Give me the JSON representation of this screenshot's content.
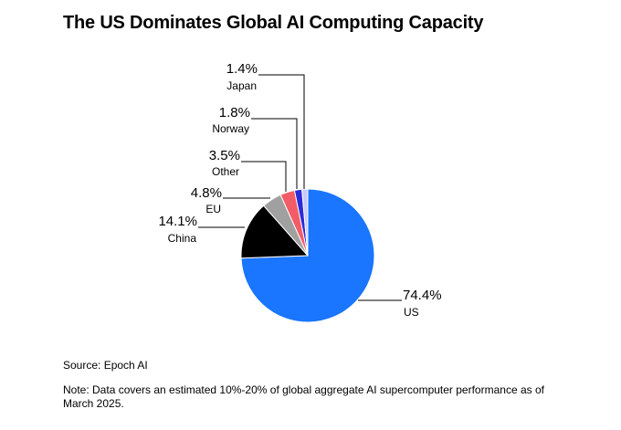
{
  "title": "The US Dominates Global AI Computing Capacity",
  "source": "Source: Epoch AI",
  "note": "Note: Data covers an estimated 10%-20% of global aggregate AI supercomputer performance as of March 2025.",
  "chart_data": {
    "type": "pie",
    "title": "The US Dominates Global AI Computing Capacity",
    "slices": [
      {
        "label": "US",
        "value": 74.4,
        "display": "74.4%",
        "color": "#1a75ff"
      },
      {
        "label": "China",
        "value": 14.1,
        "display": "14.1%",
        "color": "#000000"
      },
      {
        "label": "EU",
        "value": 4.8,
        "display": "4.8%",
        "color": "#a0a0a0"
      },
      {
        "label": "Other",
        "value": 3.5,
        "display": "3.5%",
        "color": "#f25c66"
      },
      {
        "label": "Norway",
        "value": 1.8,
        "display": "1.8%",
        "color": "#2b2bd8"
      },
      {
        "label": "Japan",
        "value": 1.4,
        "display": "1.4%",
        "color": "#c9c9ff"
      }
    ],
    "start_angle": "12 o'clock, clockwise"
  }
}
